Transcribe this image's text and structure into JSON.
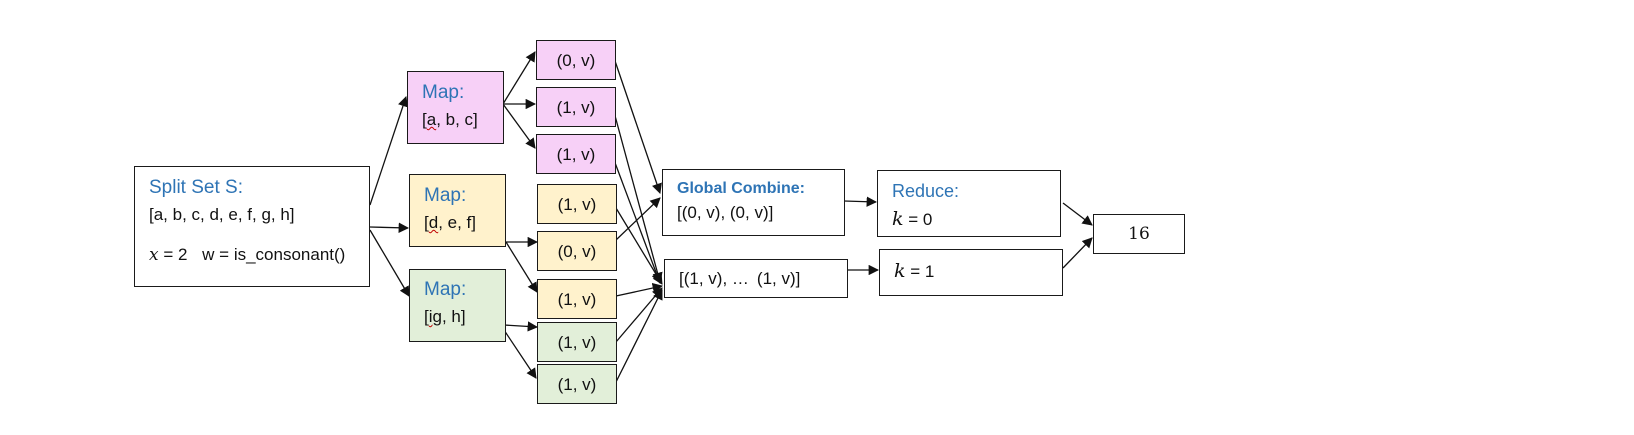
{
  "split": {
    "title": "Split Set S",
    "colon": ":",
    "set": "[a, b, c, d, e, f, g, h]",
    "x_var": "x",
    "x_val": "= 2",
    "w": "w = is_consonant()"
  },
  "maps": [
    {
      "title": "Map",
      "colon": ":",
      "first": "a",
      "rest": ", b, c]",
      "open": "["
    },
    {
      "title": "Map",
      "colon": ":",
      "first": "d",
      "rest": ", e, f]",
      "open": "["
    },
    {
      "title": "Map",
      "colon": ":",
      "first": "ig",
      "rest": ", h]",
      "open": "["
    }
  ],
  "pairs": [
    "(0, v)",
    "(1, v)",
    "(1, v)",
    "(1, v)",
    "(0, v)",
    "(1, v)",
    "(1, v)",
    "(1, v)"
  ],
  "global_combine": {
    "title": "Global Combine:",
    "values": "[(0, v), (0, v)]"
  },
  "combine_ones": {
    "start": "[(1, v), …",
    "end": "(1, v)]"
  },
  "reduce": {
    "title": "Reduce:",
    "k_var": "k",
    "k0": "= 0",
    "k1": "= 1"
  },
  "result": "16",
  "colors": {
    "title_blue": "#2e74b5",
    "map1": "#f7d0f7",
    "map2": "#fff2cc",
    "map3": "#e2efd9"
  }
}
